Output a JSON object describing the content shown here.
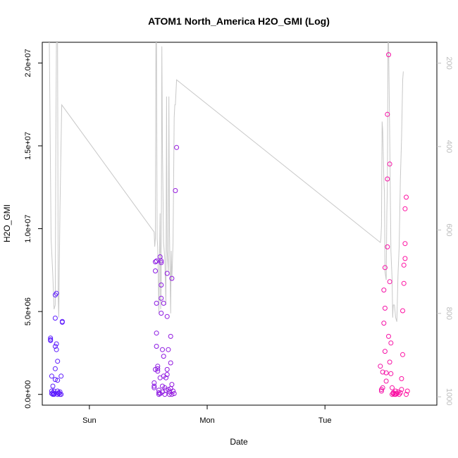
{
  "chart_data": {
    "type": "scatter",
    "title": "ATOM1 North_America H2O_GMI (Log)",
    "xlabel": "Date",
    "ylabel": "H2O_GMI",
    "x_ticks": [
      "Sun",
      "Mon",
      "Tue"
    ],
    "y_ticks": [
      "0.0e+00",
      "5.0e+06",
      "1.0e+07",
      "1.5e+07",
      "2.0e+07"
    ],
    "y_tick_values": [
      0,
      5000000,
      10000000,
      15000000,
      20000000
    ],
    "y2_ticks": [
      "200",
      "400",
      "600",
      "800",
      "1000"
    ],
    "y2_tick_values": [
      200,
      400,
      600,
      800,
      1000
    ],
    "ylim": [
      -650000,
      21250000
    ],
    "y2lim": [
      1020,
      150
    ],
    "xlim": [
      -0.4,
      2.95
    ],
    "grid": false,
    "line_color": "#c8c8c8",
    "point_gradient": [
      "#5a1cff",
      "#ff10a0"
    ],
    "series": [
      {
        "points": [
          [
            -0.33,
            3250000
          ],
          [
            -0.33,
            3400000
          ],
          [
            -0.33,
            3300000
          ],
          [
            -0.32,
            200000
          ],
          [
            -0.32,
            50000
          ],
          [
            -0.32,
            1100000
          ],
          [
            -0.31,
            500000
          ],
          [
            -0.31,
            0
          ],
          [
            -0.31,
            100000
          ],
          [
            -0.3,
            50000
          ],
          [
            -0.3,
            0
          ],
          [
            -0.3,
            200000
          ],
          [
            -0.29,
            900000
          ],
          [
            -0.29,
            1550000
          ],
          [
            -0.29,
            2900000
          ],
          [
            -0.29,
            4600000
          ],
          [
            -0.29,
            6000000
          ],
          [
            -0.28,
            6100000
          ],
          [
            -0.28,
            3050000
          ],
          [
            -0.28,
            2700000
          ],
          [
            -0.27,
            2000000
          ],
          [
            -0.27,
            850000
          ],
          [
            -0.27,
            200000
          ],
          [
            -0.27,
            0
          ],
          [
            -0.26,
            100000
          ],
          [
            -0.26,
            50000
          ],
          [
            -0.25,
            0
          ],
          [
            -0.25,
            150000
          ],
          [
            -0.24,
            1100000
          ],
          [
            -0.24,
            0
          ],
          [
            -0.23,
            4400000
          ],
          [
            -0.23,
            4350000
          ],
          [
            0.55,
            400000
          ],
          [
            0.55,
            500000
          ],
          [
            0.55,
            700000
          ],
          [
            0.56,
            1500000
          ],
          [
            0.56,
            8000000
          ],
          [
            0.56,
            7450000
          ],
          [
            0.57,
            8050000
          ],
          [
            0.57,
            5500000
          ],
          [
            0.57,
            3700000
          ],
          [
            0.57,
            2900000
          ],
          [
            0.58,
            1700000
          ],
          [
            0.58,
            1550000
          ],
          [
            0.58,
            1400000
          ],
          [
            0.59,
            100000
          ],
          [
            0.59,
            250000
          ],
          [
            0.59,
            0
          ],
          [
            0.6,
            1000000
          ],
          [
            0.6,
            50000
          ],
          [
            0.6,
            8300000
          ],
          [
            0.61,
            8050000
          ],
          [
            0.61,
            7950000
          ],
          [
            0.61,
            6600000
          ],
          [
            0.61,
            5800000
          ],
          [
            0.61,
            4900000
          ],
          [
            0.62,
            2700000
          ],
          [
            0.62,
            500000
          ],
          [
            0.62,
            150000
          ],
          [
            0.63,
            1100000
          ],
          [
            0.63,
            2300000
          ],
          [
            0.63,
            5500000
          ],
          [
            0.64,
            400000
          ],
          [
            0.64,
            0
          ],
          [
            0.65,
            250000
          ],
          [
            0.65,
            1000000
          ],
          [
            0.66,
            1200000
          ],
          [
            0.66,
            1500000
          ],
          [
            0.66,
            7300000
          ],
          [
            0.66,
            4700000
          ],
          [
            0.67,
            2700000
          ],
          [
            0.67,
            300000
          ],
          [
            0.68,
            0
          ],
          [
            0.68,
            150000
          ],
          [
            0.69,
            350000
          ],
          [
            0.69,
            1900000
          ],
          [
            0.69,
            3500000
          ],
          [
            0.7,
            7000000
          ],
          [
            0.7,
            600000
          ],
          [
            0.7,
            0
          ],
          [
            0.71,
            200000
          ],
          [
            0.72,
            50000
          ],
          [
            0.73,
            12300000
          ],
          [
            0.74,
            14900000
          ],
          [
            2.47,
            1700000
          ],
          [
            2.48,
            300000
          ],
          [
            2.48,
            200000
          ],
          [
            2.49,
            400000
          ],
          [
            2.49,
            1350000
          ],
          [
            2.5,
            6300000
          ],
          [
            2.5,
            4300000
          ],
          [
            2.51,
            7650000
          ],
          [
            2.51,
            5200000
          ],
          [
            2.51,
            2600000
          ],
          [
            2.52,
            1300000
          ],
          [
            2.52,
            800000
          ],
          [
            2.53,
            8900000
          ],
          [
            2.53,
            13000000
          ],
          [
            2.53,
            16900000
          ],
          [
            2.54,
            20500000
          ],
          [
            2.54,
            3500000
          ],
          [
            2.55,
            1950000
          ],
          [
            2.55,
            13900000
          ],
          [
            2.55,
            6800000
          ],
          [
            2.56,
            3100000
          ],
          [
            2.56,
            1250000
          ],
          [
            2.57,
            400000
          ],
          [
            2.57,
            0
          ],
          [
            2.58,
            100000
          ],
          [
            2.58,
            50000
          ],
          [
            2.59,
            0
          ],
          [
            2.6,
            200000
          ],
          [
            2.6,
            0
          ],
          [
            2.61,
            50000
          ],
          [
            2.62,
            150000
          ],
          [
            2.63,
            0
          ],
          [
            2.64,
            100000
          ],
          [
            2.65,
            300000
          ],
          [
            2.65,
            950000
          ],
          [
            2.66,
            2400000
          ],
          [
            2.66,
            5050000
          ],
          [
            2.67,
            6700000
          ],
          [
            2.67,
            7800000
          ],
          [
            2.68,
            9100000
          ],
          [
            2.68,
            8200000
          ],
          [
            2.68,
            11200000
          ],
          [
            2.69,
            11900000
          ],
          [
            2.69,
            0
          ],
          [
            2.7,
            200000
          ]
        ]
      }
    ],
    "line": [
      [
        -0.345,
        150
      ],
      [
        -0.34,
        150
      ],
      [
        -0.325,
        620
      ],
      [
        -0.31,
        710
      ],
      [
        -0.3,
        790
      ],
      [
        -0.29,
        780
      ],
      [
        -0.285,
        410
      ],
      [
        -0.28,
        150
      ],
      [
        -0.27,
        150
      ],
      [
        -0.265,
        760
      ],
      [
        -0.26,
        810
      ],
      [
        -0.25,
        550
      ],
      [
        -0.235,
        300
      ],
      [
        0.55,
        605
      ],
      [
        0.555,
        640
      ],
      [
        0.56,
        620
      ],
      [
        0.565,
        150
      ],
      [
        0.57,
        150
      ],
      [
        0.575,
        620
      ],
      [
        0.58,
        640
      ],
      [
        0.585,
        720
      ],
      [
        0.59,
        800
      ],
      [
        0.595,
        680
      ],
      [
        0.6,
        560
      ],
      [
        0.605,
        790
      ],
      [
        0.61,
        730
      ],
      [
        0.615,
        160
      ],
      [
        0.62,
        400
      ],
      [
        0.63,
        630
      ],
      [
        0.64,
        670
      ],
      [
        0.65,
        780
      ],
      [
        0.655,
        280
      ],
      [
        0.66,
        650
      ],
      [
        0.67,
        700
      ],
      [
        0.675,
        280
      ],
      [
        0.68,
        600
      ],
      [
        0.69,
        800
      ],
      [
        0.695,
        650
      ],
      [
        0.7,
        720
      ],
      [
        0.71,
        630
      ],
      [
        0.72,
        330
      ],
      [
        0.725,
        300
      ],
      [
        0.73,
        300
      ],
      [
        0.74,
        240
      ],
      [
        2.47,
        630
      ],
      [
        2.475,
        620
      ],
      [
        2.48,
        590
      ],
      [
        2.485,
        340
      ],
      [
        2.49,
        360
      ],
      [
        2.5,
        480
      ],
      [
        2.505,
        510
      ],
      [
        2.51,
        700
      ],
      [
        2.52,
        720
      ],
      [
        2.525,
        560
      ],
      [
        2.53,
        490
      ],
      [
        2.535,
        150
      ],
      [
        2.54,
        150
      ],
      [
        2.55,
        380
      ],
      [
        2.56,
        650
      ],
      [
        2.57,
        720
      ],
      [
        2.575,
        810
      ],
      [
        2.58,
        780
      ],
      [
        2.59,
        780
      ],
      [
        2.6,
        810
      ],
      [
        2.61,
        820
      ],
      [
        2.62,
        710
      ],
      [
        2.63,
        640
      ],
      [
        2.64,
        480
      ],
      [
        2.65,
        380
      ],
      [
        2.66,
        240
      ],
      [
        2.665,
        220
      ]
    ]
  }
}
